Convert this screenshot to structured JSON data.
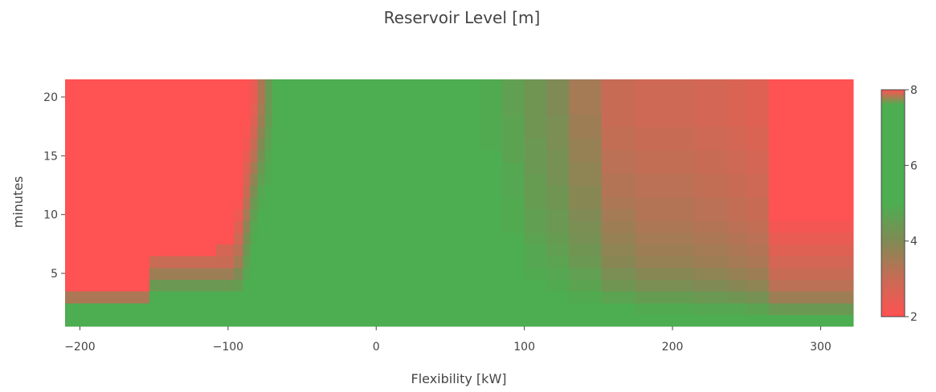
{
  "chart_data": {
    "type": "heatmap",
    "title": "Reservoir Level [m]",
    "xlabel": "Flexibility [kW]",
    "ylabel": "minutes",
    "xlim": [
      -210,
      322
    ],
    "ylim": [
      0.5,
      21.5
    ],
    "x_ticks": [
      {
        "value": -200,
        "label": "−200"
      },
      {
        "value": -100,
        "label": "−100"
      },
      {
        "value": 0,
        "label": "0"
      },
      {
        "value": 100,
        "label": "100"
      },
      {
        "value": 200,
        "label": "200"
      },
      {
        "value": 300,
        "label": "300"
      }
    ],
    "y_ticks": [
      {
        "value": 5,
        "label": "5"
      },
      {
        "value": 10,
        "label": "10"
      },
      {
        "value": 15,
        "label": "15"
      },
      {
        "value": 20,
        "label": "20"
      }
    ],
    "colorbar": {
      "min": 2,
      "max": 8,
      "ticks": [
        {
          "value": 2,
          "label": "2"
        },
        {
          "value": 4,
          "label": "4"
        },
        {
          "value": 6,
          "label": "6"
        },
        {
          "value": 8,
          "label": "8"
        }
      ],
      "colorscale": [
        {
          "value": 2,
          "color": "#ff5252"
        },
        {
          "value": 3,
          "color": "#c86b55"
        },
        {
          "value": 4,
          "color": "#808a54"
        },
        {
          "value": 5,
          "color": "#4cae50"
        },
        {
          "value": 7.6,
          "color": "#4cae50"
        },
        {
          "value": 8,
          "color": "#ff5252"
        }
      ]
    },
    "x_edges": [
      -210,
      -153,
      -138,
      -122,
      -108,
      -96,
      -90,
      -85,
      -80,
      -75,
      -70,
      -64,
      -40,
      0,
      40,
      58,
      70,
      85,
      100,
      115,
      130,
      152,
      175,
      200,
      215,
      237,
      250,
      265,
      290,
      322
    ],
    "y_edges": [
      0.5,
      1.5,
      2.5,
      3.5,
      4.5,
      5.5,
      6.5,
      7.5,
      8.5,
      9.5,
      10.5,
      11.5,
      12.5,
      13.5,
      14.5,
      15.5,
      16.5,
      17.5,
      18.5,
      19.5,
      20.5,
      21.5
    ],
    "z": [
      [
        5,
        5,
        5,
        5,
        5,
        5,
        5,
        5,
        5,
        5,
        5,
        5,
        5,
        5,
        5,
        5,
        5,
        5,
        5,
        5,
        5,
        5,
        5,
        5,
        5,
        5,
        5,
        5,
        5
      ],
      [
        5,
        5,
        5,
        5,
        5,
        5,
        5,
        5,
        5,
        5,
        5,
        5,
        5,
        5,
        5,
        5,
        5,
        5,
        5,
        5,
        5,
        5,
        4.9,
        4.9,
        4.8,
        4.8,
        4.7,
        4.4,
        4.4
      ],
      [
        3.4,
        5,
        5,
        5,
        5,
        5,
        5,
        5,
        5,
        5,
        5,
        5,
        5,
        5,
        5,
        5,
        5,
        5,
        5,
        5,
        4.9,
        4.7,
        4.5,
        4.5,
        4.4,
        4.3,
        4.2,
        3.6,
        3.6
      ],
      [
        2,
        4.4,
        4.4,
        4.4,
        4.4,
        4.5,
        5,
        5,
        5,
        5,
        5,
        5,
        5,
        5,
        5,
        5,
        5,
        5,
        5,
        4.9,
        4.7,
        4.3,
        4.1,
        4.1,
        4.0,
        3.9,
        3.8,
        3.2,
        3.2
      ],
      [
        2,
        3.6,
        3.6,
        3.6,
        3.6,
        4.0,
        4.8,
        5,
        5,
        5,
        5,
        5,
        5,
        5,
        5,
        5,
        5,
        5,
        4.9,
        4.8,
        4.6,
        4.1,
        3.9,
        3.9,
        3.8,
        3.7,
        3.6,
        3.0,
        3.0
      ],
      [
        2,
        3.0,
        3.0,
        3.0,
        3.0,
        3.5,
        4.6,
        5,
        5,
        5,
        5,
        5,
        5,
        5,
        5,
        5,
        5,
        5,
        4.8,
        4.7,
        4.4,
        3.9,
        3.7,
        3.7,
        3.6,
        3.5,
        3.4,
        2.8,
        2.8
      ],
      [
        2,
        2,
        2,
        2,
        2.8,
        3.2,
        4.4,
        5,
        5,
        5,
        5,
        5,
        5,
        5,
        5,
        5,
        5,
        5,
        4.8,
        4.6,
        4.3,
        3.8,
        3.6,
        3.6,
        3.5,
        3.4,
        3.3,
        2.6,
        2.6
      ],
      [
        2,
        2,
        2,
        2,
        2,
        2.9,
        4.1,
        4.9,
        5,
        5,
        5,
        5,
        5,
        5,
        5,
        5,
        5,
        5,
        4.7,
        4.5,
        4.2,
        3.7,
        3.5,
        3.5,
        3.4,
        3.3,
        3.2,
        2.4,
        2.4
      ],
      [
        2,
        2,
        2,
        2,
        2,
        2.6,
        3.8,
        4.8,
        5,
        5,
        5,
        5,
        5,
        5,
        5,
        5,
        5,
        4.9,
        4.6,
        4.4,
        4.1,
        3.6,
        3.4,
        3.4,
        3.3,
        3.2,
        3.1,
        2.2,
        2.2
      ],
      [
        2,
        2,
        2,
        2,
        2,
        2.3,
        3.5,
        4.6,
        5,
        5,
        5,
        5,
        5,
        5,
        5,
        5,
        5,
        4.9,
        4.6,
        4.4,
        4.0,
        3.5,
        3.3,
        3.3,
        3.2,
        3.1,
        3.0,
        2,
        2
      ],
      [
        2,
        2,
        2,
        2,
        2,
        2.1,
        3.2,
        4.4,
        4.9,
        5,
        5,
        5,
        5,
        5,
        5,
        5,
        5,
        4.9,
        4.5,
        4.3,
        3.9,
        3.4,
        3.3,
        3.3,
        3.2,
        3.1,
        3.0,
        2,
        2
      ],
      [
        2,
        2,
        2,
        2,
        2,
        2,
        3.0,
        4.1,
        4.8,
        5,
        5,
        5,
        5,
        5,
        5,
        5,
        5,
        4.8,
        4.5,
        4.3,
        3.9,
        3.3,
        3.2,
        3.2,
        3.1,
        3.0,
        2.9,
        2,
        2
      ],
      [
        2,
        2,
        2,
        2,
        2,
        2,
        2.8,
        3.8,
        4.6,
        4.9,
        5,
        5,
        5,
        5,
        5,
        5,
        5,
        4.8,
        4.5,
        4.2,
        3.8,
        3.3,
        3.2,
        3.2,
        3.1,
        3.0,
        2.9,
        2,
        2
      ],
      [
        2,
        2,
        2,
        2,
        2,
        2,
        2.6,
        3.5,
        4.4,
        4.9,
        5,
        5,
        5,
        5,
        5,
        5,
        5,
        4.8,
        4.4,
        4.2,
        3.8,
        3.2,
        3.1,
        3.1,
        3.0,
        2.9,
        2.8,
        2,
        2
      ],
      [
        2,
        2,
        2,
        2,
        2,
        2,
        2.4,
        3.2,
        4.2,
        4.8,
        5,
        5,
        5,
        5,
        5,
        5,
        5,
        4.7,
        4.4,
        4.2,
        3.7,
        3.2,
        3.1,
        3.1,
        3.0,
        2.9,
        2.8,
        2,
        2
      ],
      [
        2,
        2,
        2,
        2,
        2,
        2,
        2.2,
        3.0,
        4.0,
        4.7,
        5,
        5,
        5,
        5,
        5,
        5,
        4.9,
        4.7,
        4.4,
        4.1,
        3.7,
        3.1,
        3.0,
        3.0,
        2.9,
        2.8,
        2.7,
        2,
        2
      ],
      [
        2,
        2,
        2,
        2,
        2,
        2,
        2.1,
        2.8,
        3.8,
        4.6,
        5,
        5,
        5,
        5,
        5,
        5,
        4.9,
        4.7,
        4.3,
        4.1,
        3.6,
        3.1,
        3.0,
        3.0,
        2.9,
        2.8,
        2.7,
        2,
        2
      ],
      [
        2,
        2,
        2,
        2,
        2,
        2,
        2,
        2.6,
        3.6,
        4.5,
        5,
        5,
        5,
        5,
        5,
        5,
        4.9,
        4.7,
        4.3,
        4.1,
        3.6,
        3.0,
        2.9,
        2.9,
        2.8,
        2.7,
        2.6,
        2,
        2
      ],
      [
        2,
        2,
        2,
        2,
        2,
        2,
        2,
        2.5,
        3.5,
        4.4,
        5,
        5,
        5,
        5,
        5,
        5,
        4.9,
        4.6,
        4.3,
        4.0,
        3.5,
        3.0,
        2.9,
        2.9,
        2.8,
        2.7,
        2.6,
        2,
        2
      ],
      [
        2,
        2,
        2,
        2,
        2,
        2,
        2,
        2.4,
        3.4,
        4.4,
        5,
        5,
        5,
        5,
        5,
        5,
        4.9,
        4.6,
        4.3,
        4.0,
        3.5,
        3.0,
        2.9,
        2.9,
        2.8,
        2.7,
        2.6,
        2,
        2
      ],
      [
        2,
        2,
        2,
        2,
        2,
        2,
        2,
        2.4,
        3.4,
        4.4,
        5,
        5,
        5,
        5,
        5,
        5,
        4.9,
        4.6,
        4.3,
        4.0,
        3.5,
        3.0,
        2.9,
        2.9,
        2.8,
        2.7,
        2.6,
        2,
        2
      ]
    ]
  }
}
